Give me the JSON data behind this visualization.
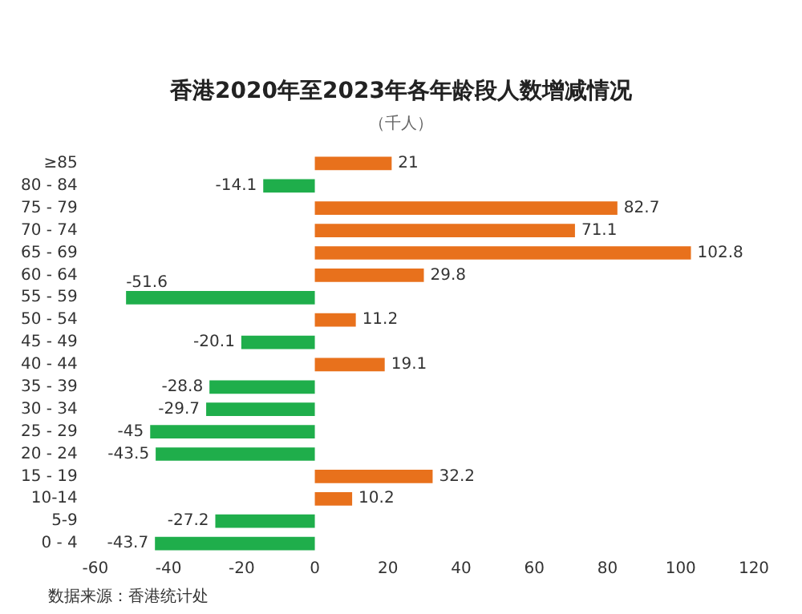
{
  "chart_data": {
    "type": "bar",
    "orientation": "horizontal",
    "title": "香港2020年至2023年各年龄段人数增减情况",
    "subtitle": "（千人）",
    "categories": [
      "≥85",
      "80 - 84",
      "75 - 79",
      "70 - 74",
      "65 - 69",
      "60 - 64",
      "55 - 59",
      "50 - 54",
      "45 - 49",
      "40 - 44",
      "35 - 39",
      "30 - 34",
      "25 - 29",
      "20 - 24",
      "15 - 19",
      "10-14",
      "5-9",
      "0 - 4"
    ],
    "values": [
      21,
      -14.1,
      82.7,
      71.1,
      102.8,
      29.8,
      -51.6,
      11.2,
      -20.1,
      19.1,
      -28.8,
      -29.7,
      -45,
      -43.5,
      32.2,
      10.2,
      -27.2,
      -43.7
    ],
    "colors": [
      "#e8711c",
      "#1fae4b",
      "#e8711c",
      "#e8711c",
      "#e8711c",
      "#e8711c",
      "#1fae4b",
      "#e8711c",
      "#1fae4b",
      "#e8711c",
      "#1fae4b",
      "#1fae4b",
      "#1fae4b",
      "#1fae4b",
      "#e8711c",
      "#e8711c",
      "#1fae4b",
      "#1fae4b"
    ],
    "xlim": [
      -60,
      120
    ],
    "xticks": [
      -60,
      -40,
      -20,
      0,
      20,
      40,
      60,
      80,
      100,
      120
    ],
    "data_labels": true,
    "grid": false,
    "legend": false,
    "annotations": [
      "数据来源：香港统计处"
    ]
  }
}
